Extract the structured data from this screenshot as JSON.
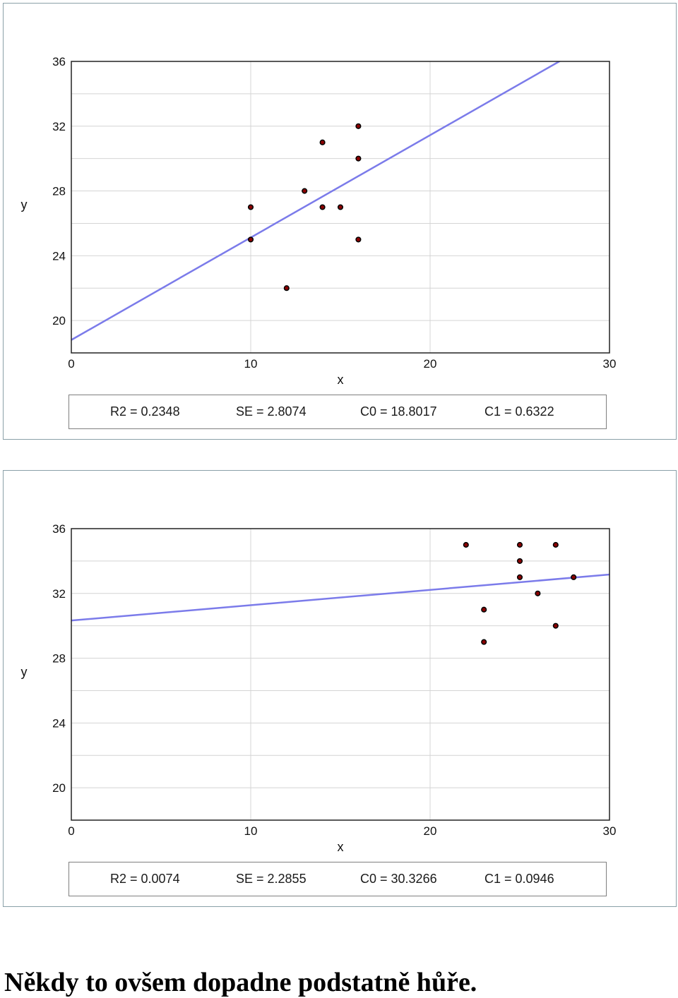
{
  "charts": [
    {
      "stats": {
        "r2": "R2 = 0.2348",
        "se": "SE = 2.8074",
        "c0": "C0 = 18.8017",
        "c1": "C1 = 0.6322"
      }
    },
    {
      "stats": {
        "r2": "R2 = 0.0074",
        "se": "SE = 2.2855",
        "c0": "C0 = 30.3266",
        "c1": "C1 = 0.0946"
      }
    }
  ],
  "caption": "Někdy to ovšem dopadne podstatně hůře.",
  "colors": {
    "line": "#7b7bea",
    "point": "#000000",
    "point_fill": "#8b0000",
    "grid": "#d4d4d4",
    "border": "#8aa0a8"
  },
  "chart_data": [
    {
      "type": "scatter",
      "xlabel": "x",
      "ylabel": "y",
      "xlim": [
        0,
        30
      ],
      "ylim": [
        18,
        36
      ],
      "xticks": [
        0,
        10,
        20,
        30
      ],
      "yticks": [
        20,
        24,
        28,
        32,
        36
      ],
      "grid": true,
      "points": [
        [
          10,
          27
        ],
        [
          10,
          25
        ],
        [
          12,
          22
        ],
        [
          13,
          28
        ],
        [
          14,
          31
        ],
        [
          14,
          27
        ],
        [
          15,
          27
        ],
        [
          16,
          32
        ],
        [
          16,
          30
        ],
        [
          16,
          25
        ]
      ],
      "fit": {
        "intercept": 18.8017,
        "slope": 0.6322
      }
    },
    {
      "type": "scatter",
      "xlabel": "x",
      "ylabel": "y",
      "xlim": [
        0,
        30
      ],
      "ylim": [
        18,
        36
      ],
      "xticks": [
        0,
        10,
        20,
        30
      ],
      "yticks": [
        20,
        24,
        28,
        32,
        36
      ],
      "grid": true,
      "points": [
        [
          22,
          35
        ],
        [
          23,
          31
        ],
        [
          23,
          29
        ],
        [
          25,
          35
        ],
        [
          25,
          34
        ],
        [
          25,
          33
        ],
        [
          26,
          32
        ],
        [
          27,
          35
        ],
        [
          27,
          30
        ],
        [
          28,
          33
        ]
      ],
      "fit": {
        "intercept": 30.3266,
        "slope": 0.0946
      }
    }
  ]
}
